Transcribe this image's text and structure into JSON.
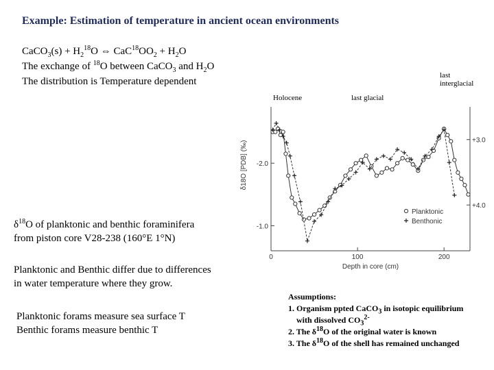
{
  "slide": {
    "title": "Example: Estimation of temperature in ancient ocean environments",
    "equation": {
      "a": "CaCO",
      "a_sub": "3",
      "b": "(s) + H",
      "b_sub": "2",
      "c_sup": "18",
      "c": "O  ⇔  CaC",
      "d_sup": "18",
      "d": "OO",
      "d_sub": "2",
      "e": " +  H",
      "e_sub": "2",
      "f": "O"
    },
    "exchange": {
      "a": "The exchange of ",
      "a_sup": "18",
      "b": "O between CaCO",
      "b_sub": "3",
      "c": " and H",
      "c_sub": "2",
      "d": "O"
    },
    "distribution": "The distribution is Temperature dependent",
    "caption": {
      "delta": "δ",
      "sup": "18",
      "line1": "O of planktonic and benthic foraminifera",
      "line2": "from piston core V28-238 (160°E 1°N)"
    },
    "differ": {
      "line1": "Planktonic and Benthic differ due to differences",
      "line2": "in water temperature where they grow."
    },
    "forams": {
      "line1": "Planktonic forams measure sea surface T",
      "line2": "Benthic forams measure benthic T"
    },
    "assumptions": {
      "title": "Assumptions:",
      "item1a": "1. Organism ppted CaCO",
      "item1a_sub": "3",
      "item1b": " in isotopic equilibrium",
      "item1c": "with dissolved  CO",
      "item1c_sub": "3",
      "item1c_sup": "2-",
      "item2a": "2. The δ",
      "item2_sup": "18",
      "item2b": "O of the original water is known",
      "item3a": "3. The δ",
      "item3_sup": "18",
      "item3b": "O of the shell has remained unchanged"
    },
    "annotations": {
      "last_interglacial_1": "last",
      "last_interglacial_2": "interglacial",
      "holocene": "Holocene",
      "last_glacial": "last glacial"
    }
  },
  "chart_data": {
    "type": "line",
    "xlabel": "Depth in core (cm)",
    "ylabel": "δ18O [PDB] (‰)",
    "x_ticks": [
      "0",
      "100",
      "200"
    ],
    "xlim": [
      0,
      230
    ],
    "left_axis": {
      "ticks": [
        "-2.0",
        "-1.0"
      ],
      "range": [
        -2.9,
        -0.6
      ]
    },
    "right_axis": {
      "ticks": [
        "+3.0",
        "+4.0"
      ],
      "range": [
        2.5,
        4.7
      ]
    },
    "legend": {
      "position": "bottom-right",
      "entries": [
        "Planktonic",
        "Benthonic"
      ]
    },
    "series": [
      {
        "name": "Planktonic",
        "marker": "circle",
        "axis": "left",
        "x": [
          2,
          5,
          8,
          11,
          14,
          17,
          20,
          24,
          28,
          33,
          38,
          44,
          50,
          56,
          62,
          68,
          74,
          80,
          86,
          92,
          98,
          104,
          110,
          116,
          122,
          128,
          134,
          140,
          146,
          152,
          158,
          164,
          170,
          176,
          182,
          188,
          194,
          200,
          204,
          208,
          212,
          216,
          220,
          224,
          228
        ],
        "y": [
          -2.5,
          -2.5,
          -2.55,
          -2.45,
          -2.5,
          -2.15,
          -1.8,
          -1.45,
          -1.35,
          -1.2,
          -1.1,
          -1.12,
          -1.18,
          -1.25,
          -1.32,
          -1.45,
          -1.55,
          -1.65,
          -1.8,
          -1.9,
          -2.0,
          -2.05,
          -2.12,
          -1.95,
          -1.8,
          -1.85,
          -1.92,
          -1.9,
          -2.0,
          -2.08,
          -2.05,
          -1.98,
          -1.88,
          -2.05,
          -2.1,
          -2.2,
          -2.4,
          -2.55,
          -2.45,
          -2.35,
          -2.05,
          -1.85,
          -1.75,
          -1.65,
          -1.5
        ]
      },
      {
        "name": "Benthonic",
        "marker": "plus",
        "axis": "right",
        "x": [
          2,
          6,
          10,
          14,
          18,
          22,
          27,
          34,
          42,
          50,
          58,
          66,
          74,
          82,
          90,
          98,
          106,
          114,
          122,
          130,
          138,
          146,
          154,
          162,
          170,
          178,
          186,
          194,
          200,
          206,
          212
        ],
        "y": [
          2.85,
          2.75,
          2.85,
          2.95,
          3.05,
          3.25,
          3.55,
          3.95,
          4.55,
          4.25,
          4.15,
          3.95,
          3.75,
          3.7,
          3.6,
          3.5,
          3.35,
          3.45,
          3.3,
          3.25,
          3.3,
          3.15,
          3.2,
          3.3,
          3.45,
          3.25,
          3.15,
          2.95,
          2.85,
          3.35,
          3.85
        ]
      }
    ]
  }
}
